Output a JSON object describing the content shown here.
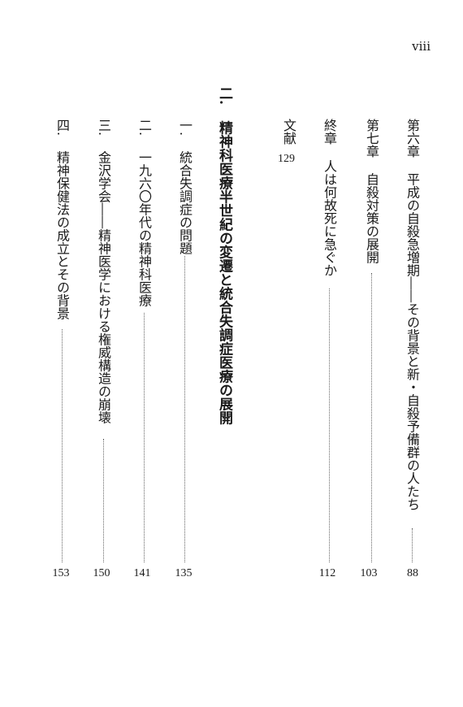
{
  "page_number": "viii",
  "entries": [
    {
      "label": "第六章",
      "title": "平成の自殺急増期――その背景と新・自殺予備群の人たち",
      "page": "88"
    },
    {
      "label": "第七章",
      "title": "自殺対策の展開",
      "page": "103"
    },
    {
      "label": "終章",
      "title": "人は何故死に急ぐか",
      "page": "112"
    },
    {
      "label": "文献",
      "page": "129"
    }
  ],
  "part2": {
    "label": "二.",
    "title": "精神科医療半世紀の変遷と統合失調症医療の展開",
    "sections": [
      {
        "label": "一.",
        "title": "統合失調症の問題",
        "page": "135"
      },
      {
        "label": "二.",
        "title": "一九六〇年代の精神科医療",
        "page": "141"
      },
      {
        "label": "三.",
        "title": "金沢学会――精神医学における権威構造の崩壊",
        "page": "150"
      },
      {
        "label": "四.",
        "title": "精神保健法の成立とその背景",
        "page": "153"
      }
    ]
  }
}
